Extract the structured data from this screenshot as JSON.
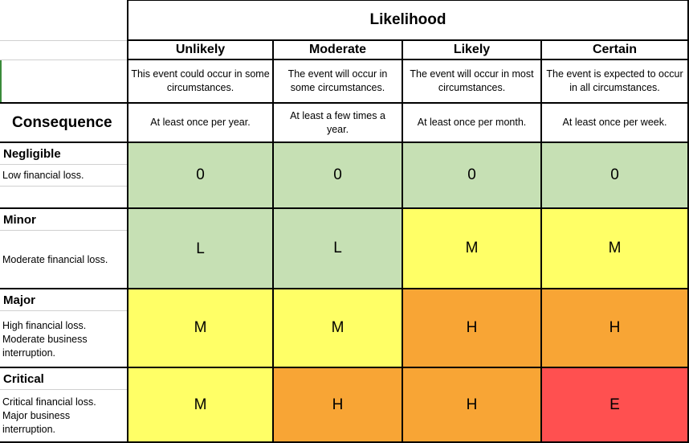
{
  "header": {
    "likelihood_title": "Likelihood",
    "consequence_title": "Consequence"
  },
  "columns": [
    {
      "label": "Unlikely",
      "description": "This event could occur in some circumstances.",
      "frequency": "At least once per year."
    },
    {
      "label": "Moderate",
      "description": "The event will occur in some circumstances.",
      "frequency": "At least a few times a year."
    },
    {
      "label": "Likely",
      "description": "The event will occur in most circumstances.",
      "frequency": "At least once per month."
    },
    {
      "label": "Certain",
      "description": "The event is expected to occur in all circumstances.",
      "frequency": "At least once per week."
    }
  ],
  "rows": [
    {
      "label": "Negligible",
      "description": "Low financial loss.",
      "ratings": [
        "0",
        "0",
        "0",
        "0"
      ]
    },
    {
      "label": "Minor",
      "description": "Moderate financial loss.",
      "ratings": [
        "L",
        "L",
        "M",
        "M"
      ]
    },
    {
      "label": "Major",
      "description": "High financial loss. Moderate business interruption.",
      "ratings": [
        "M",
        "M",
        "H",
        "H"
      ]
    },
    {
      "label": "Critical",
      "description": "Critical financial loss. Major business interruption.",
      "ratings": [
        "M",
        "H",
        "H",
        "E"
      ]
    }
  ],
  "rating_colors": {
    "0": "#c6e0b4",
    "L": "#c6e0b4",
    "M": "#ffff66",
    "H": "#f8a535",
    "E": "#ff5050"
  }
}
